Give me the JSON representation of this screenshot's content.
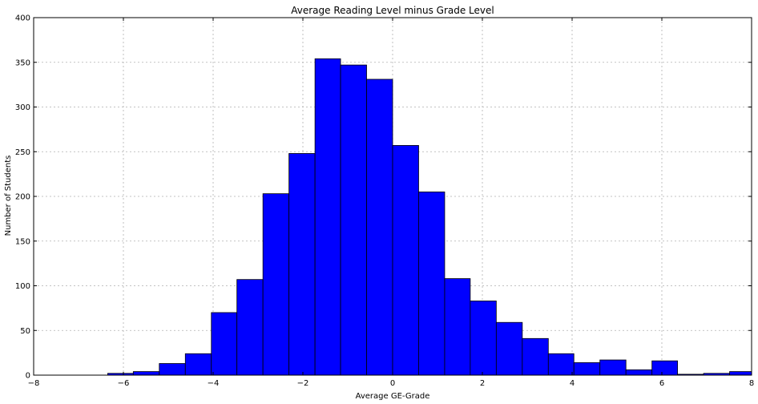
{
  "chart_data": {
    "type": "bar",
    "title": "Average Reading Level minus Grade Level",
    "xlabel": "Average GE-Grade",
    "ylabel": "Number of Students",
    "xlim": [
      -8,
      8
    ],
    "ylim": [
      0,
      400
    ],
    "xticks": [
      -8,
      -6,
      -4,
      -2,
      0,
      2,
      4,
      6,
      8
    ],
    "xtick_labels": [
      "−8",
      "−6",
      "−4",
      "−2",
      "0",
      "2",
      "4",
      "6",
      "8"
    ],
    "yticks": [
      0,
      50,
      100,
      150,
      200,
      250,
      300,
      350,
      400
    ],
    "grid": true,
    "bar_color": "#0000ff",
    "bins": [
      {
        "x0": -6.35,
        "x1": -5.78,
        "count": 2
      },
      {
        "x0": -5.78,
        "x1": -5.2,
        "count": 4
      },
      {
        "x0": -5.2,
        "x1": -4.62,
        "count": 13
      },
      {
        "x0": -4.62,
        "x1": -4.04,
        "count": 24
      },
      {
        "x0": -4.04,
        "x1": -3.47,
        "count": 70
      },
      {
        "x0": -3.47,
        "x1": -2.89,
        "count": 107
      },
      {
        "x0": -2.89,
        "x1": -2.31,
        "count": 203
      },
      {
        "x0": -2.31,
        "x1": -1.73,
        "count": 248
      },
      {
        "x0": -1.73,
        "x1": -1.16,
        "count": 354
      },
      {
        "x0": -1.16,
        "x1": -0.58,
        "count": 347
      },
      {
        "x0": -0.58,
        "x1": 0.0,
        "count": 331
      },
      {
        "x0": 0.0,
        "x1": 0.58,
        "count": 257
      },
      {
        "x0": 0.58,
        "x1": 1.16,
        "count": 205
      },
      {
        "x0": 1.16,
        "x1": 1.73,
        "count": 108
      },
      {
        "x0": 1.73,
        "x1": 2.31,
        "count": 83
      },
      {
        "x0": 2.31,
        "x1": 2.89,
        "count": 59
      },
      {
        "x0": 2.89,
        "x1": 3.47,
        "count": 41
      },
      {
        "x0": 3.47,
        "x1": 4.04,
        "count": 24
      },
      {
        "x0": 4.04,
        "x1": 4.62,
        "count": 14
      },
      {
        "x0": 4.62,
        "x1": 5.2,
        "count": 17
      },
      {
        "x0": 5.2,
        "x1": 5.78,
        "count": 6
      },
      {
        "x0": 5.78,
        "x1": 6.35,
        "count": 16
      },
      {
        "x0": 6.35,
        "x1": 6.93,
        "count": 1
      },
      {
        "x0": 6.93,
        "x1": 7.51,
        "count": 2
      },
      {
        "x0": 7.51,
        "x1": 8.09,
        "count": 4
      }
    ]
  }
}
